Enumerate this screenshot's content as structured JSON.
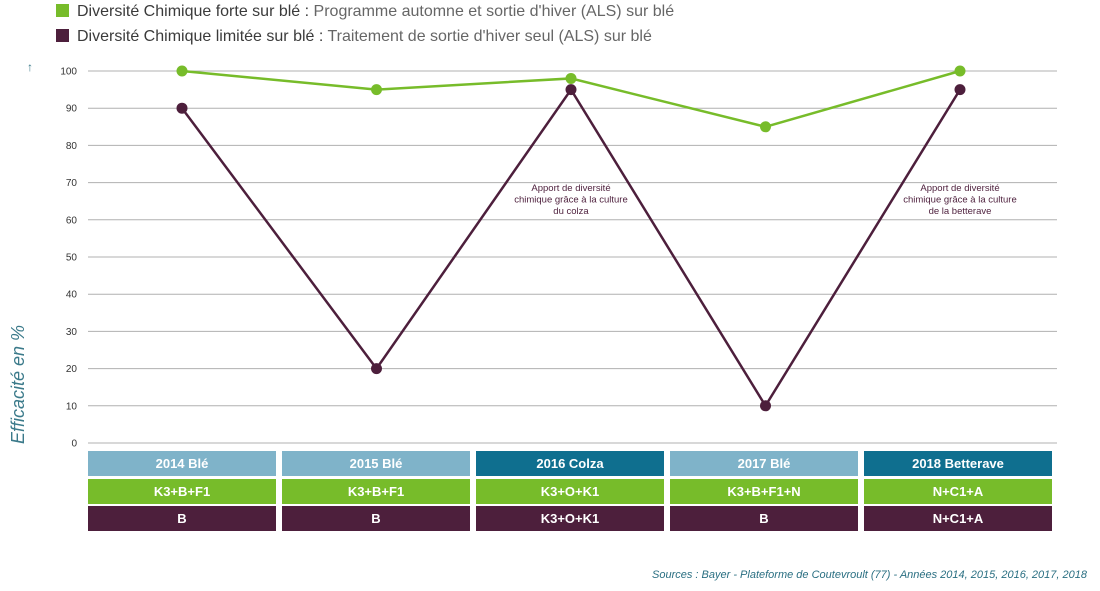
{
  "legend": [
    {
      "bold": "Diversité Chimique forte sur blé :",
      "text": "Programme automne et sortie d'hiver (ALS) sur blé",
      "color": "#77bc2a"
    },
    {
      "bold": "Diversité Chimique limitée sur blé :",
      "text": "Traitement de sortie d'hiver seul (ALS) sur blé",
      "color": "#4d1f3c"
    }
  ],
  "chart_data": {
    "type": "line",
    "categories": [
      "2014 Blé",
      "2015 Blé",
      "2016 Colza",
      "2017 Blé",
      "2018 Betterave"
    ],
    "series": [
      {
        "name": "Diversité Chimique forte sur blé",
        "values": [
          100,
          95,
          98,
          85,
          100
        ],
        "color": "#77bc2a"
      },
      {
        "name": "Diversité Chimique limitée sur blé",
        "values": [
          90,
          20,
          95,
          10,
          95
        ],
        "color": "#4d1f3c"
      }
    ],
    "ylabel": "Efficacité en %",
    "ylim": [
      0,
      100
    ],
    "yticks": [
      0,
      10,
      20,
      30,
      40,
      50,
      60,
      70,
      80,
      90,
      100
    ],
    "grid": true,
    "annotations": [
      {
        "category_index": 2,
        "lines": [
          "Apport de diversité",
          "chimique grâce à la culture",
          "du colza"
        ]
      },
      {
        "category_index": 4,
        "lines": [
          "Apport de diversité",
          "chimique grâce à la culture",
          "de la betterave"
        ]
      }
    ]
  },
  "table": {
    "years": [
      {
        "label": "2014 Blé",
        "color": "#7fb3c9"
      },
      {
        "label": "2015 Blé",
        "color": "#7fb3c9"
      },
      {
        "label": "2016 Colza",
        "color": "#0f6f8f"
      },
      {
        "label": "2017 Blé",
        "color": "#7fb3c9"
      },
      {
        "label": "2018 Betterave",
        "color": "#0f6f8f"
      }
    ],
    "green_row": [
      "K3+B+F1",
      "K3+B+F1",
      "K3+O+K1",
      "K3+B+F1+N",
      "N+C1+A"
    ],
    "purple_row": [
      "B",
      "B",
      "K3+O+K1",
      "B",
      "N+C1+A"
    ],
    "green_color": "#77bc2a",
    "purple_color": "#4d1f3c"
  },
  "source": "Sources : Bayer - Plateforme de Coutevroult (77) - Années 2014, 2015, 2016, 2017, 2018"
}
